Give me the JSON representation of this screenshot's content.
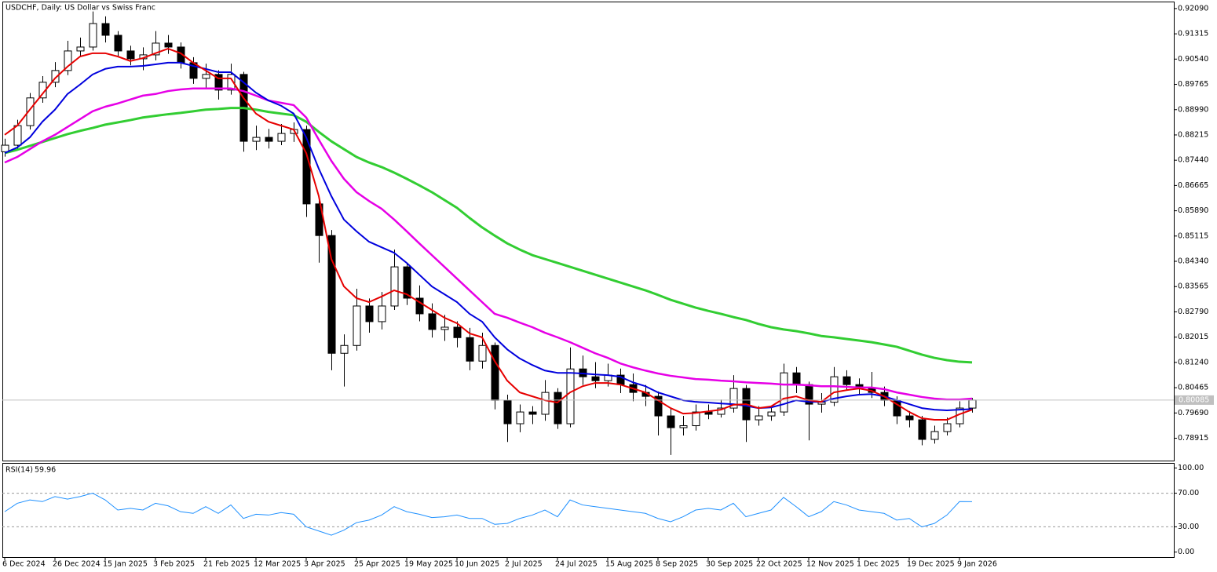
{
  "chart_data": [
    {
      "type": "candlestick",
      "title": "USDCHF, Daily:  US Dollar vs Swiss Franc",
      "categories": [
        "6 Dec 2024",
        null,
        null,
        null,
        "26 Dec 2024",
        null,
        null,
        null,
        "15 Jan 2025",
        null,
        null,
        null,
        "3 Feb 2025",
        null,
        null,
        null,
        "21 Feb 2025",
        null,
        null,
        null,
        "12 Mar 2025",
        null,
        null,
        null,
        "3 Apr 2025",
        null,
        null,
        null,
        "25 Apr 2025",
        null,
        null,
        null,
        "19 May 2025",
        null,
        null,
        null,
        "10 Jun 2025",
        null,
        null,
        null,
        "2 Jul 2025",
        null,
        null,
        null,
        "24 Jul 2025",
        null,
        null,
        null,
        "15 Aug 2025",
        null,
        null,
        null,
        "8 Sep 2025",
        null,
        null,
        null,
        "30 Sep 2025",
        null,
        null,
        null,
        "22 Oct 2025",
        null,
        null,
        null,
        "12 Nov 2025",
        null,
        null,
        null,
        "1 Dec 2025",
        null,
        null,
        null,
        "19 Dec 2025",
        null,
        null,
        null,
        "9 Jan 2026",
        null
      ],
      "open": [
        0.877,
        0.879,
        0.885,
        0.8935,
        0.8983,
        0.9019,
        0.9079,
        0.9091,
        0.9163,
        0.9127,
        0.9079,
        0.9055,
        0.9067,
        0.9103,
        0.9091,
        0.9043,
        0.8995,
        0.9007,
        0.8959,
        0.9007,
        0.8802,
        0.8814,
        0.8802,
        0.8826,
        0.8838,
        0.861,
        0.8513,
        0.8152,
        0.8176,
        0.8297,
        0.8249,
        0.8297,
        0.8417,
        0.8321,
        0.8273,
        0.8225,
        0.8232,
        0.82,
        0.8128,
        0.8176,
        0.8008,
        0.7936,
        0.7972,
        0.7965,
        0.8032,
        0.7936,
        0.8104,
        0.808,
        0.8068,
        0.8085,
        0.8056,
        0.8032,
        0.802,
        0.796,
        0.7924,
        0.793,
        0.7972,
        0.7965,
        0.7984,
        0.8044,
        0.7948,
        0.796,
        0.7972,
        0.8092,
        0.8056,
        0.7996,
        0.8002,
        0.808,
        0.8056,
        0.8044,
        0.8032,
        0.8008,
        0.796,
        0.7948,
        0.7888,
        0.7912,
        0.7936,
        0.7984
      ],
      "high": [
        0.881,
        0.8868,
        0.895,
        0.9002,
        0.9045,
        0.911,
        0.912,
        0.92,
        0.9185,
        0.914,
        0.9095,
        0.909,
        0.914,
        0.9128,
        0.9105,
        0.906,
        0.904,
        0.902,
        0.904,
        0.9015,
        0.885,
        0.884,
        0.8855,
        0.886,
        0.885,
        0.8625,
        0.853,
        0.821,
        0.835,
        0.832,
        0.834,
        0.847,
        0.843,
        0.836,
        0.8305,
        0.827,
        0.825,
        0.823,
        0.8215,
        0.8185,
        0.8025,
        0.7995,
        0.799,
        0.807,
        0.8045,
        0.817,
        0.8145,
        0.8125,
        0.812,
        0.8105,
        0.809,
        0.8055,
        0.8035,
        0.7985,
        0.796,
        0.7995,
        0.7995,
        0.801,
        0.8085,
        0.8055,
        0.799,
        0.799,
        0.812,
        0.811,
        0.8065,
        0.803,
        0.811,
        0.81,
        0.8075,
        0.8095,
        0.805,
        0.802,
        0.7975,
        0.796,
        0.793,
        0.7955,
        0.8005,
        0.8015
      ],
      "low": [
        0.8755,
        0.8778,
        0.8838,
        0.892,
        0.8968,
        0.9005,
        0.906,
        0.908,
        0.9105,
        0.9062,
        0.9035,
        0.902,
        0.905,
        0.907,
        0.9025,
        0.8978,
        0.8965,
        0.893,
        0.8945,
        0.877,
        0.8775,
        0.878,
        0.879,
        0.88,
        0.857,
        0.843,
        0.81,
        0.805,
        0.816,
        0.8215,
        0.8225,
        0.8285,
        0.83,
        0.825,
        0.82,
        0.819,
        0.817,
        0.81,
        0.8105,
        0.798,
        0.788,
        0.791,
        0.7935,
        0.7945,
        0.792,
        0.7925,
        0.8055,
        0.8045,
        0.805,
        0.803,
        0.8005,
        0.799,
        0.79,
        0.784,
        0.79,
        0.7915,
        0.795,
        0.7955,
        0.797,
        0.788,
        0.793,
        0.7945,
        0.796,
        0.803,
        0.7885,
        0.797,
        0.799,
        0.804,
        0.8025,
        0.8015,
        0.799,
        0.7935,
        0.7925,
        0.787,
        0.7875,
        0.79,
        0.7925,
        0.797
      ],
      "close": [
        0.879,
        0.885,
        0.8935,
        0.8983,
        0.9019,
        0.9079,
        0.9091,
        0.9163,
        0.9127,
        0.9079,
        0.9055,
        0.9067,
        0.9103,
        0.9091,
        0.9043,
        0.8995,
        0.9007,
        0.8959,
        0.9007,
        0.8802,
        0.8814,
        0.8802,
        0.8826,
        0.8838,
        0.861,
        0.8513,
        0.8152,
        0.8176,
        0.8297,
        0.8249,
        0.8297,
        0.8417,
        0.8321,
        0.8273,
        0.8225,
        0.8232,
        0.82,
        0.8128,
        0.8176,
        0.8008,
        0.7936,
        0.7972,
        0.7965,
        0.8032,
        0.7936,
        0.8104,
        0.808,
        0.8068,
        0.8085,
        0.8056,
        0.8032,
        0.802,
        0.796,
        0.7924,
        0.793,
        0.7972,
        0.7965,
        0.7984,
        0.8044,
        0.7948,
        0.796,
        0.7972,
        0.8092,
        0.8056,
        0.7996,
        0.8002,
        0.808,
        0.8056,
        0.8044,
        0.8032,
        0.8008,
        0.796,
        0.7948,
        0.7888,
        0.7912,
        0.7936,
        0.7984,
        0.80085
      ],
      "up_color": "#ffffff",
      "down_color": "#000000",
      "wick_color": "#000000",
      "last_price_color": "#c0c0c0",
      "series": [
        {
          "color": "#32cd32",
          "values": [
            0.8766,
            0.8776,
            0.8788,
            0.88,
            0.8812,
            0.8824,
            0.8834,
            0.8843,
            0.8853,
            0.886,
            0.8867,
            0.8875,
            0.888,
            0.8885,
            0.8889,
            0.8894,
            0.8899,
            0.8901,
            0.8904,
            0.8904,
            0.8899,
            0.8892,
            0.8887,
            0.8882,
            0.8862,
            0.8831,
            0.8802,
            0.8778,
            0.8754,
            0.8737,
            0.8723,
            0.8706,
            0.8687,
            0.8667,
            0.8646,
            0.8622,
            0.8598,
            0.8567,
            0.8538,
            0.8513,
            0.8489,
            0.847,
            0.8453,
            0.8441,
            0.8429,
            0.8417,
            0.8405,
            0.8393,
            0.8381,
            0.8369,
            0.8357,
            0.8345,
            0.8331,
            0.8316,
            0.8304,
            0.8292,
            0.8282,
            0.8273,
            0.8263,
            0.8254,
            0.8242,
            0.8232,
            0.8225,
            0.822,
            0.8213,
            0.8205,
            0.8201,
            0.8196,
            0.8191,
            0.8186,
            0.8179,
            0.8172,
            0.816,
            0.8148,
            0.8138,
            0.8131,
            0.8126,
            0.8124
          ]
        },
        {
          "color": "#e600e6",
          "values": [
            0.8737,
            0.8754,
            0.8778,
            0.8802,
            0.8822,
            0.8846,
            0.887,
            0.8894,
            0.8908,
            0.8918,
            0.893,
            0.8942,
            0.8947,
            0.8956,
            0.8961,
            0.8964,
            0.8964,
            0.8964,
            0.8964,
            0.8956,
            0.8942,
            0.8927,
            0.892,
            0.8913,
            0.8875,
            0.8807,
            0.8742,
            0.8687,
            0.8646,
            0.8619,
            0.8595,
            0.8562,
            0.8526,
            0.8489,
            0.8453,
            0.8417,
            0.8381,
            0.8345,
            0.8309,
            0.8273,
            0.8261,
            0.8246,
            0.8232,
            0.8215,
            0.8201,
            0.8186,
            0.8169,
            0.8152,
            0.8138,
            0.8121,
            0.8109,
            0.8099,
            0.809,
            0.8083,
            0.8078,
            0.8073,
            0.8071,
            0.8068,
            0.8066,
            0.8063,
            0.8061,
            0.8059,
            0.8056,
            0.8056,
            0.8054,
            0.8051,
            0.8051,
            0.8049,
            0.8047,
            0.8047,
            0.8042,
            0.8032,
            0.8025,
            0.8018,
            0.8013,
            0.801,
            0.801,
            0.8013
          ]
        },
        {
          "color": "#0000dd",
          "values": [
            0.8766,
            0.8783,
            0.8814,
            0.8862,
            0.8899,
            0.8947,
            0.8976,
            0.9007,
            0.9024,
            0.9031,
            0.9031,
            0.9033,
            0.9038,
            0.9043,
            0.9043,
            0.9033,
            0.9024,
            0.9014,
            0.9014,
            0.8983,
            0.8951,
            0.8927,
            0.8911,
            0.8887,
            0.8814,
            0.8718,
            0.8634,
            0.8562,
            0.8526,
            0.8494,
            0.8477,
            0.846,
            0.8429,
            0.8393,
            0.8357,
            0.8333,
            0.8309,
            0.8273,
            0.8249,
            0.8201,
            0.8164,
            0.8136,
            0.8116,
            0.8099,
            0.8092,
            0.8092,
            0.809,
            0.8087,
            0.8085,
            0.808,
            0.8063,
            0.8051,
            0.8032,
            0.802,
            0.8008,
            0.8003,
            0.8001,
            0.7998,
            0.7996,
            0.7991,
            0.7984,
            0.7986,
            0.7996,
            0.8008,
            0.8003,
            0.8003,
            0.8013,
            0.802,
            0.8025,
            0.8027,
            0.802,
            0.8008,
            0.7996,
            0.7984,
            0.7979,
            0.7977,
            0.7979,
            0.7981
          ]
        },
        {
          "color": "#e60000",
          "values": [
            0.8822,
            0.885,
            0.8899,
            0.8947,
            0.8995,
            0.9031,
            0.9062,
            0.9072,
            0.9072,
            0.9062,
            0.9048,
            0.9057,
            0.9072,
            0.9086,
            0.9072,
            0.9043,
            0.9019,
            0.8995,
            0.8995,
            0.8935,
            0.8887,
            0.8862,
            0.885,
            0.8838,
            0.8766,
            0.8634,
            0.8441,
            0.8357,
            0.8321,
            0.8309,
            0.8326,
            0.8345,
            0.8333,
            0.8309,
            0.8285,
            0.8261,
            0.8244,
            0.8213,
            0.8201,
            0.8128,
            0.8068,
            0.8032,
            0.802,
            0.8008,
            0.8001,
            0.8032,
            0.8051,
            0.8061,
            0.8061,
            0.8056,
            0.8044,
            0.8032,
            0.8008,
            0.7984,
            0.7967,
            0.7969,
            0.7974,
            0.7979,
            0.7994,
            0.7996,
            0.7984,
            0.7989,
            0.8013,
            0.802,
            0.8008,
            0.8003,
            0.8032,
            0.8039,
            0.8044,
            0.8037,
            0.802,
            0.7996,
            0.7972,
            0.7953,
            0.7948,
            0.7948,
            0.7965,
            0.7979
          ]
        }
      ],
      "ylim": [
        0.7823,
        0.9228
      ],
      "yticks": [
        {
          "value": 0.9209,
          "label": "0.92090"
        },
        {
          "value": 0.91315,
          "label": "0.91315"
        },
        {
          "value": 0.9054,
          "label": "0.90540"
        },
        {
          "value": 0.89765,
          "label": "0.89765"
        },
        {
          "value": 0.8899,
          "label": "0.88990"
        },
        {
          "value": 0.88215,
          "label": "0.88215"
        },
        {
          "value": 0.8744,
          "label": "0.87440"
        },
        {
          "value": 0.86665,
          "label": "0.86665"
        },
        {
          "value": 0.8589,
          "label": "0.85890"
        },
        {
          "value": 0.85115,
          "label": "0.85115"
        },
        {
          "value": 0.8434,
          "label": "0.84340"
        },
        {
          "value": 0.83565,
          "label": "0.83565"
        },
        {
          "value": 0.8279,
          "label": "0.82790"
        },
        {
          "value": 0.82015,
          "label": "0.82015"
        },
        {
          "value": 0.8124,
          "label": "0.81240"
        },
        {
          "value": 0.80465,
          "label": "0.80465"
        },
        {
          "value": 0.7969,
          "label": "0.79690"
        },
        {
          "value": 0.78915,
          "label": "0.78915"
        }
      ]
    },
    {
      "type": "line",
      "name": "RSI(14)",
      "color": "#1e90ff",
      "values": [
        48,
        58,
        62,
        60,
        66,
        63,
        66,
        70,
        62,
        50,
        52,
        50,
        58,
        55,
        48,
        46,
        54,
        46,
        56,
        40,
        45,
        44,
        47,
        45,
        30,
        25,
        20,
        26,
        35,
        38,
        44,
        54,
        48,
        45,
        41,
        42,
        44,
        40,
        40,
        33,
        34,
        40,
        44,
        50,
        42,
        62,
        56,
        54,
        52,
        50,
        48,
        46,
        40,
        36,
        42,
        50,
        52,
        50,
        58,
        42,
        46,
        50,
        65,
        54,
        42,
        48,
        60,
        56,
        50,
        48,
        46,
        38,
        40,
        30,
        34,
        44,
        60,
        59.96
      ],
      "ylim": [
        -6,
        106
      ],
      "yticks": [
        {
          "value": 100,
          "label": "100.00"
        },
        {
          "value": 70,
          "label": "70.00"
        },
        {
          "value": 30,
          "label": "30.00"
        },
        {
          "value": 0,
          "label": "0.00"
        }
      ],
      "levels": [
        70,
        30
      ]
    }
  ]
}
